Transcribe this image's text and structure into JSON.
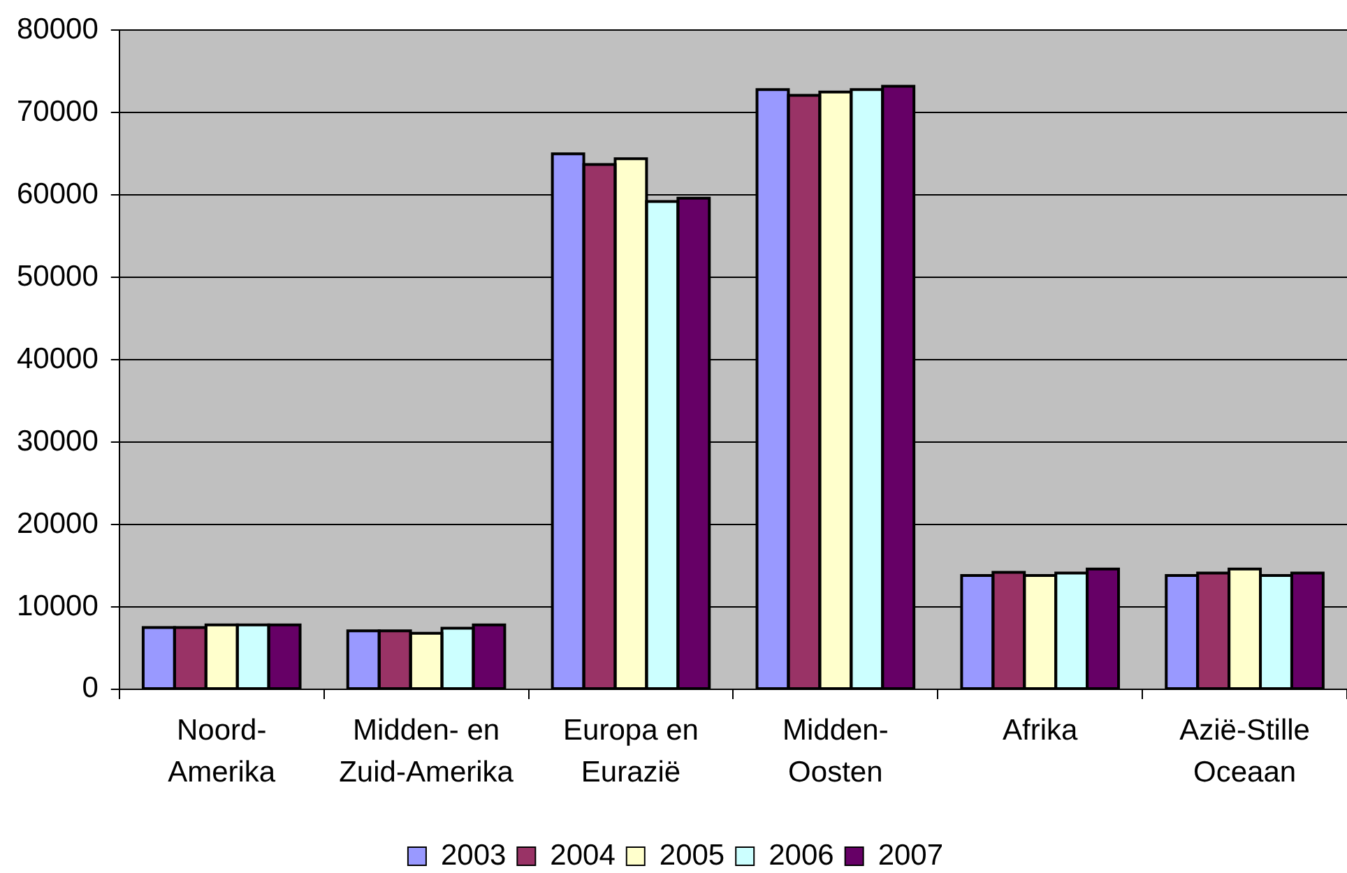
{
  "chart_data": {
    "type": "bar",
    "categories": [
      "Noord-Amerika",
      "Midden- en Zuid-Amerika",
      "Europa en Eurazië",
      "Midden-Oosten",
      "Afrika",
      "Azië-Stille Oceaan"
    ],
    "series": [
      {
        "name": "2003",
        "color": "#9999ff",
        "values": [
          7500,
          7100,
          65000,
          72800,
          13800,
          13800
        ]
      },
      {
        "name": "2004",
        "color": "#993366",
        "values": [
          7500,
          7100,
          63700,
          72100,
          14200,
          14100
        ]
      },
      {
        "name": "2005",
        "color": "#ffffcc",
        "values": [
          7800,
          6800,
          64400,
          72500,
          13800,
          14600
        ]
      },
      {
        "name": "2006",
        "color": "#ccffff",
        "values": [
          7800,
          7400,
          59200,
          72800,
          14100,
          13800
        ]
      },
      {
        "name": "2007",
        "color": "#660066",
        "values": [
          7800,
          7800,
          59600,
          73200,
          14600,
          14100
        ]
      }
    ],
    "ylim": [
      0,
      80000
    ],
    "yticks": [
      0,
      10000,
      20000,
      30000,
      40000,
      50000,
      60000,
      70000,
      80000
    ],
    "grid": "y",
    "legend": "bottom"
  }
}
